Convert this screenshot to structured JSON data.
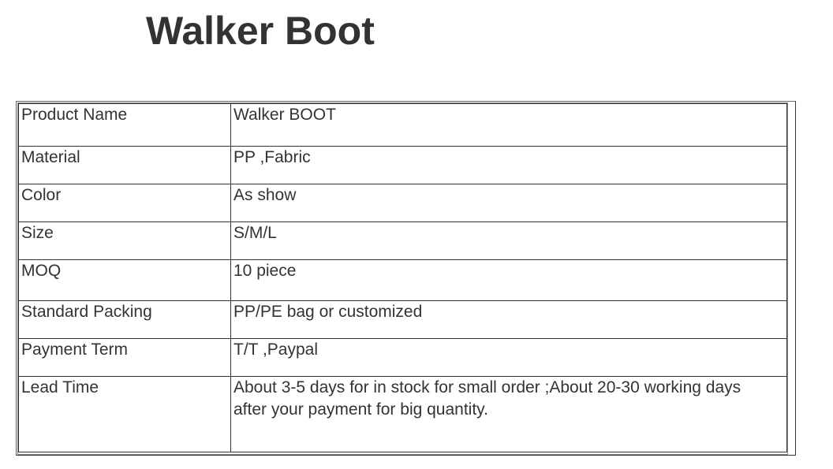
{
  "title": "Walker Boot",
  "rows": [
    {
      "label": "Product Name",
      "value": "Walker BOOT"
    },
    {
      "label": "Material",
      "value": "PP ,Fabric"
    },
    {
      "label": "Color",
      "value": "As show"
    },
    {
      "label": "Size",
      "value": "S/M/L"
    },
    {
      "label": "MOQ",
      "value": "10 piece"
    },
    {
      "label": "Standard Packing",
      "value": "PP/PE bag or customized"
    },
    {
      "label": "Payment Term",
      "value": "T/T ,Paypal"
    },
    {
      "label": "Lead Time",
      "value": "About 3-5 days for in stock for small order ;About 20-30 working days",
      "value2": "after your payment for big quantity."
    }
  ]
}
